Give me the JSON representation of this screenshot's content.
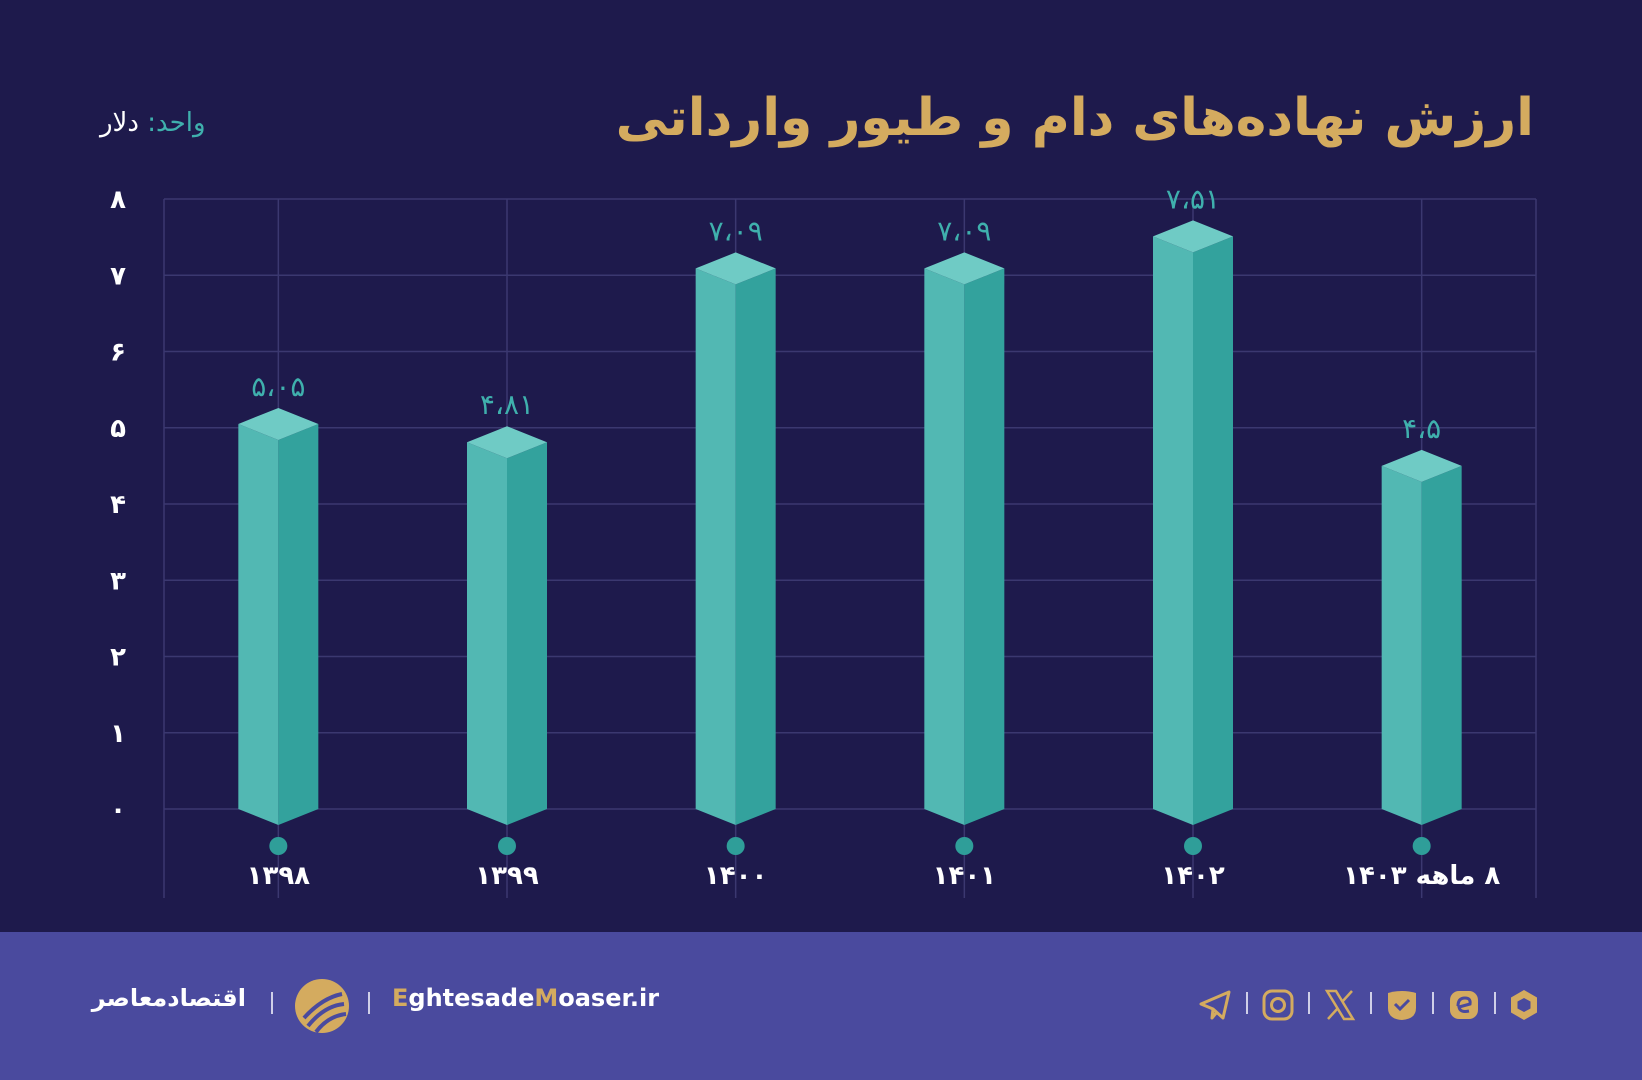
{
  "title": "ارزش نهاده‌های دام و طیور وارداتی",
  "unit": {
    "label": "واحد:",
    "value": "دلار"
  },
  "colors": {
    "background": "#1e1a4c",
    "footer": "#4a4a9e",
    "title": "#d4ab5f",
    "bar_front": "#52b8b3",
    "bar_side": "#33a29d",
    "bar_top": "#6fcbc5",
    "value_label": "#3fb0ad",
    "grid": "#3b3870"
  },
  "chart_data": {
    "type": "bar",
    "title": "ارزش نهاده‌های دام و طیور وارداتی",
    "xlabel": "",
    "ylabel": "",
    "categories": [
      "۱۳۹۸",
      "۱۳۹۹",
      "۱۴۰۰",
      "۱۴۰۱",
      "۱۴۰۲",
      "۸ ماهه ۱۴۰۳"
    ],
    "values": [
      5.05,
      4.81,
      7.09,
      7.09,
      7.51,
      4.5
    ],
    "value_labels": [
      "۵،۰۵",
      "۴،۸۱",
      "۷،۰۹",
      "۷،۰۹",
      "۷،۵۱",
      "۴،۵"
    ],
    "ylim": [
      0,
      8
    ],
    "y_ticks": [
      0,
      1,
      2,
      3,
      4,
      5,
      6,
      7,
      8
    ],
    "y_tick_labels": [
      "۰",
      "۱",
      "۲",
      "۳",
      "۴",
      "۵",
      "۶",
      "۷",
      "۸"
    ],
    "grid": true,
    "style": "3d-prism"
  },
  "footer": {
    "brand_fa": "اقتصادمعاصر",
    "site_parts": [
      "E",
      "ghtesade",
      "M",
      "oaser.ir"
    ],
    "social_icons": [
      "telegram-icon",
      "instagram-icon",
      "x-icon",
      "eitaa-icon",
      "rubika-icon",
      "bale-icon"
    ]
  }
}
